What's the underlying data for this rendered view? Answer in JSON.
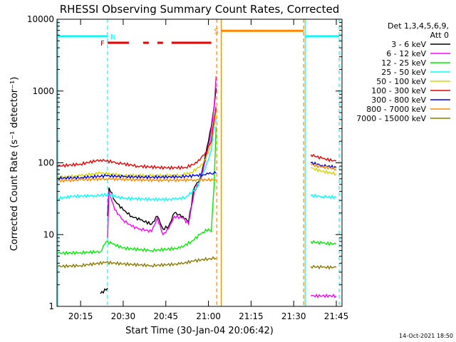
{
  "chart_data": {
    "type": "line",
    "title": "RHESSI Observing Summary Count Rates, Corrected",
    "xlabel": "Start Time (30-Jan-04 20:06:42)",
    "ylabel": "Corrected Count Rate (s⁻¹ detector⁻¹)",
    "yscale": "log",
    "ylim": [
      1,
      10000
    ],
    "xlim_minutes_from_20_00": [
      6.7,
      107
    ],
    "x_ticks": [
      {
        "label": "20:15",
        "min": 15
      },
      {
        "label": "20:30",
        "min": 30
      },
      {
        "label": "20:45",
        "min": 45
      },
      {
        "label": "21:00",
        "min": 60
      },
      {
        "label": "21:15",
        "min": 75
      },
      {
        "label": "21:30",
        "min": 90
      },
      {
        "label": "21:45",
        "min": 105
      }
    ],
    "y_ticks": [
      {
        "label": "1",
        "value": 1
      },
      {
        "label": "10",
        "value": 10
      },
      {
        "label": "100",
        "value": 100
      },
      {
        "label": "1000",
        "value": 1000
      },
      {
        "label": "10000",
        "value": 10000
      }
    ],
    "legend": {
      "placement": "right",
      "header1": "Det 1,3,4,5,6,9,",
      "header2": "Att 0",
      "entries": [
        {
          "label": "3 - 6 keV",
          "color": "#000000"
        },
        {
          "label": "6 - 12 keV",
          "color": "#ff00ff"
        },
        {
          "label": "12 - 25 keV",
          "color": "#00ee00"
        },
        {
          "label": "25 - 50 keV",
          "color": "#00ffff"
        },
        {
          "label": "50 - 100 keV",
          "color": "#d4d400"
        },
        {
          "label": "100 - 300 keV",
          "color": "#ee0000"
        },
        {
          "label": "300 - 800 keV",
          "color": "#0000ee"
        },
        {
          "label": "800 - 7000 keV",
          "color": "#ff8800"
        },
        {
          "label": "7000 - 15000 keV",
          "color": "#8b7a00"
        }
      ]
    },
    "series": [
      {
        "name": "3 - 6 keV",
        "color": "#000000",
        "segments": [
          [
            [
              22,
              1.5
            ],
            [
              24.5,
              1.8
            ]
          ],
          [
            [
              24.5,
              18
            ],
            [
              25,
              45
            ],
            [
              27,
              30
            ],
            [
              30,
              22
            ],
            [
              33,
              18
            ],
            [
              36,
              16
            ],
            [
              40,
              14
            ],
            [
              42,
              18
            ],
            [
              44,
              12
            ],
            [
              46,
              13
            ],
            [
              48,
              20
            ],
            [
              51,
              18
            ],
            [
              53,
              15
            ],
            [
              55,
              45
            ],
            [
              57,
              60
            ],
            [
              58,
              85
            ],
            [
              59,
              130
            ],
            [
              60,
              200
            ],
            [
              61,
              320
            ],
            [
              62,
              600
            ],
            [
              62.7,
              1100
            ]
          ]
        ]
      },
      {
        "name": "6 - 12 keV",
        "color": "#ff00ff",
        "segments": [
          [
            [
              24.5,
              9
            ],
            [
              25,
              40
            ],
            [
              27,
              22
            ],
            [
              30,
              16
            ],
            [
              33,
              13
            ],
            [
              36,
              12
            ],
            [
              40,
              11
            ],
            [
              42,
              17
            ],
            [
              44,
              10
            ],
            [
              46,
              12
            ],
            [
              48,
              18
            ],
            [
              51,
              17
            ],
            [
              53,
              14
            ],
            [
              55,
              40
            ],
            [
              57,
              55
            ],
            [
              58,
              75
            ],
            [
              59,
              110
            ],
            [
              60,
              170
            ],
            [
              61,
              290
            ],
            [
              62,
              600
            ],
            [
              62.7,
              1600
            ]
          ],
          [
            [
              96,
              1.4
            ],
            [
              105,
              1.4
            ]
          ]
        ]
      },
      {
        "name": "12 - 25 keV",
        "color": "#00ee00",
        "segments": [
          [
            [
              7,
              5.5
            ],
            [
              15,
              5.6
            ],
            [
              22,
              5.8
            ],
            [
              24,
              8
            ],
            [
              26,
              7.5
            ],
            [
              30,
              6.5
            ],
            [
              40,
              6
            ],
            [
              50,
              6.5
            ],
            [
              54,
              8
            ],
            [
              57,
              10
            ],
            [
              60,
              12
            ],
            [
              61,
              11
            ],
            [
              62,
              50
            ],
            [
              62.7,
              320
            ]
          ],
          [
            [
              96,
              8
            ],
            [
              100,
              7.6
            ],
            [
              105,
              7.4
            ]
          ]
        ]
      },
      {
        "name": "25 - 50 keV",
        "color": "#00ffff",
        "segments": [
          [
            [
              7,
              32
            ],
            [
              12,
              34
            ],
            [
              20,
              35
            ],
            [
              25,
              36
            ],
            [
              30,
              32
            ],
            [
              40,
              31
            ],
            [
              48,
              31
            ],
            [
              52,
              33
            ],
            [
              56,
              45
            ],
            [
              58,
              70
            ],
            [
              60,
              110
            ],
            [
              61,
              150
            ],
            [
              62,
              320
            ],
            [
              62.7,
              420
            ]
          ],
          [
            [
              96,
              35
            ],
            [
              100,
              34
            ],
            [
              105,
              33
            ]
          ]
        ]
      },
      {
        "name": "50 - 100 keV",
        "color": "#d4d400",
        "segments": [
          [
            [
              7,
              62
            ],
            [
              15,
              66
            ],
            [
              22,
              72
            ],
            [
              30,
              67
            ],
            [
              40,
              66
            ],
            [
              50,
              67
            ],
            [
              54,
              73
            ],
            [
              58,
              95
            ],
            [
              60,
              140
            ],
            [
              61,
              200
            ],
            [
              62,
              360
            ],
            [
              62.7,
              500
            ]
          ],
          [
            [
              96,
              85
            ],
            [
              100,
              76
            ],
            [
              105,
              70
            ]
          ]
        ]
      },
      {
        "name": "100 - 300 keV",
        "color": "#ee0000",
        "segments": [
          [
            [
              7,
              90
            ],
            [
              15,
              96
            ],
            [
              22,
              110
            ],
            [
              28,
              100
            ],
            [
              35,
              90
            ],
            [
              45,
              85
            ],
            [
              52,
              86
            ],
            [
              56,
              100
            ],
            [
              59,
              140
            ],
            [
              61,
              200
            ],
            [
              62,
              400
            ],
            [
              62.7,
              600
            ]
          ],
          [
            [
              96,
              130
            ],
            [
              100,
              115
            ],
            [
              105,
              105
            ]
          ]
        ]
      },
      {
        "name": "300 - 800 keV",
        "color": "#0000ee",
        "segments": [
          [
            [
              7,
              61
            ],
            [
              15,
              62
            ],
            [
              24,
              66
            ],
            [
              30,
              64
            ],
            [
              40,
              63
            ],
            [
              50,
              64
            ],
            [
              55,
              66
            ],
            [
              58,
              68
            ],
            [
              60,
              70
            ],
            [
              62.7,
              72
            ]
          ],
          [
            [
              96,
              100
            ],
            [
              100,
              92
            ],
            [
              105,
              86
            ]
          ]
        ]
      },
      {
        "name": "800 - 7000 keV",
        "color": "#ff8800",
        "segments": [
          [
            [
              7,
              56
            ],
            [
              15,
              58
            ],
            [
              24,
              60
            ],
            [
              35,
              58
            ],
            [
              45,
              57
            ],
            [
              55,
              58
            ],
            [
              62.7,
              58
            ]
          ],
          [
            [
              96,
              94
            ],
            [
              100,
              88
            ],
            [
              105,
              82
            ]
          ]
        ]
      },
      {
        "name": "7000 - 15000 keV",
        "color": "#8b7a00",
        "segments": [
          [
            [
              7,
              3.6
            ],
            [
              15,
              3.7
            ],
            [
              24,
              4.1
            ],
            [
              30,
              3.9
            ],
            [
              40,
              3.7
            ],
            [
              50,
              3.9
            ],
            [
              55,
              4.3
            ],
            [
              60,
              4.6
            ],
            [
              62.7,
              4.7
            ]
          ],
          [
            [
              96,
              3.6
            ],
            [
              100,
              3.5
            ],
            [
              105,
              3.5
            ]
          ]
        ]
      }
    ],
    "flags": [
      {
        "label": "N",
        "color": "#00ffff",
        "y": 5800,
        "spans": [
          [
            7,
            24.5
          ],
          [
            94,
            106
          ]
        ]
      },
      {
        "label": "F",
        "color": "#ee0000",
        "y": 4700,
        "spans": [
          [
            24.5,
            32
          ],
          [
            37,
            39
          ],
          [
            42,
            44
          ],
          [
            47,
            61
          ]
        ]
      },
      {
        "label": "S",
        "color": "#ff8800",
        "y": 6900,
        "spans": [
          [
            64.5,
            93.5
          ]
        ]
      }
    ],
    "vlines": [
      {
        "x": 24.5,
        "color": "#00ffff",
        "style": "dashed"
      },
      {
        "x": 106,
        "color": "#00ffff",
        "style": "dashed"
      },
      {
        "x": 94,
        "color": "#00ffff",
        "style": "solid"
      },
      {
        "x": 7,
        "color": "#00ffff",
        "style": "solid"
      },
      {
        "x": 62.9,
        "color": "#ff8800",
        "style": "dashed"
      },
      {
        "x": 64.5,
        "color": "#ff8800",
        "style": "solid"
      },
      {
        "x": 93.5,
        "color": "#ff8800",
        "style": "dashed"
      }
    ],
    "footer_timestamp": "14-Oct-2021 18:50"
  }
}
